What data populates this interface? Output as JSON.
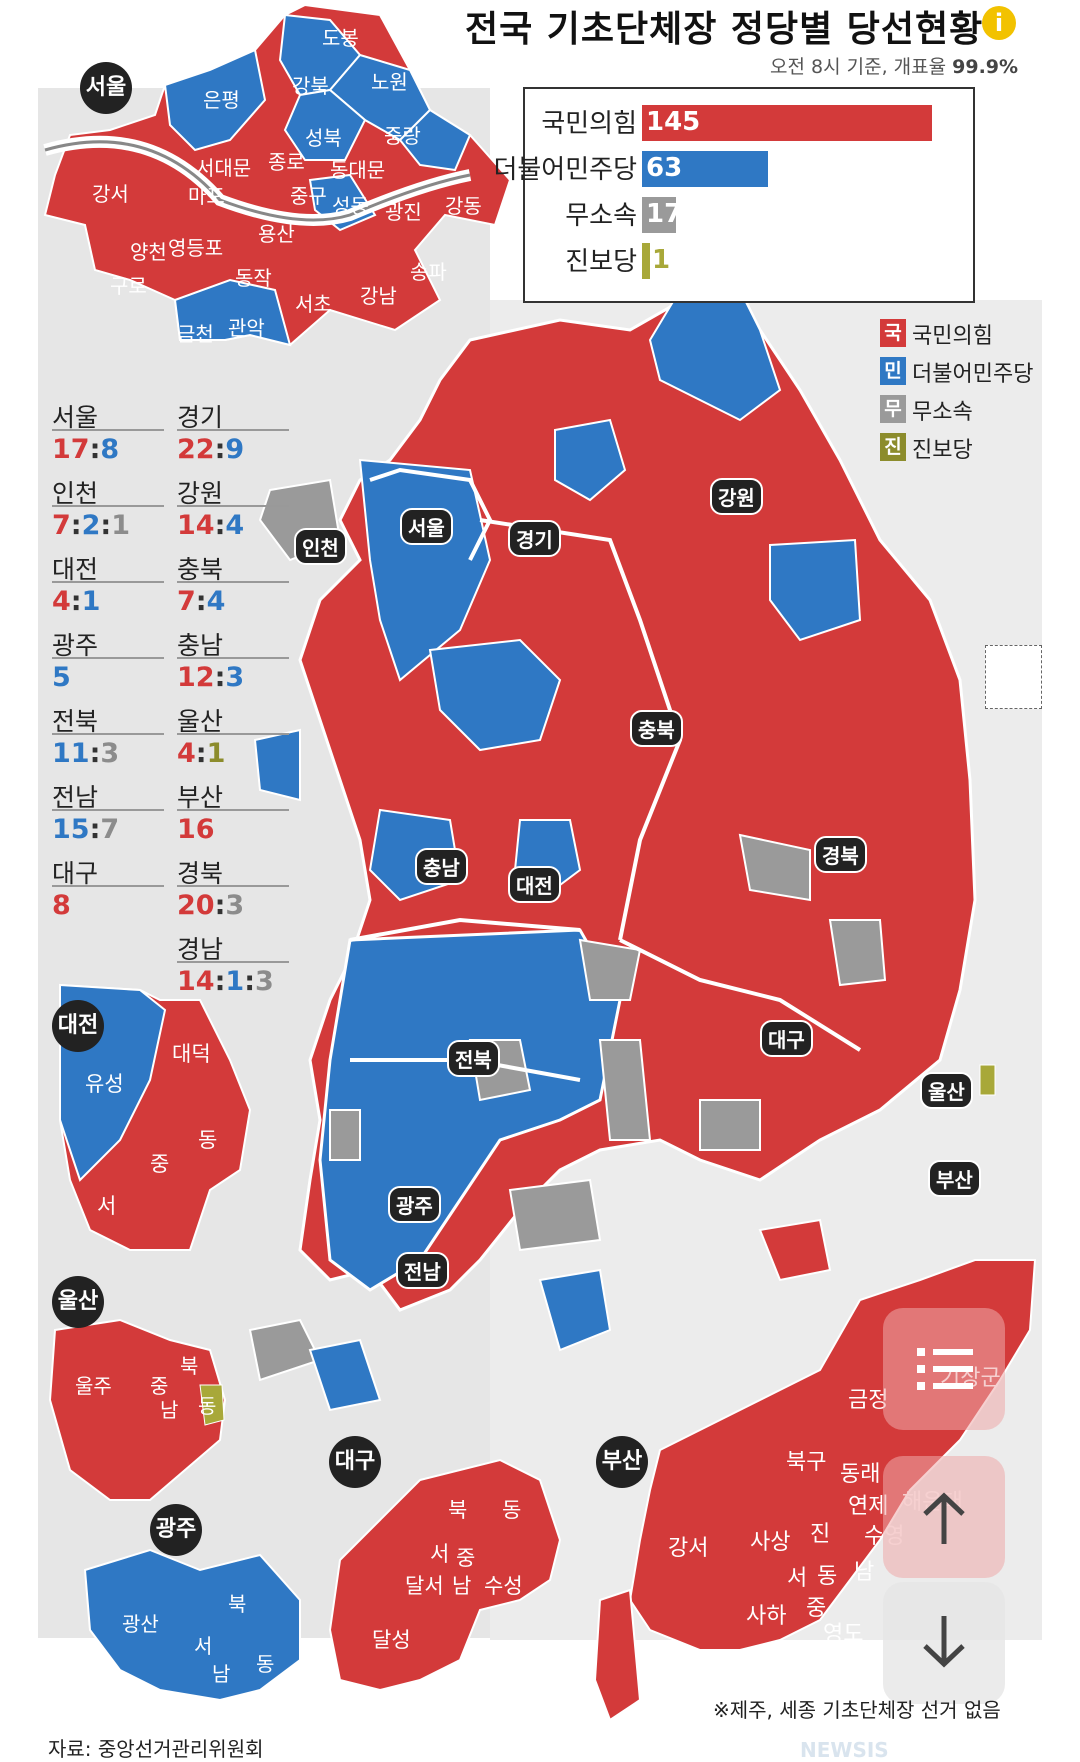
{
  "title": "전국 기초단체장 정당별 당선현황",
  "title_info_icon": "i",
  "subtitle": {
    "time": "오전 8시 기준, 개표율",
    "rate": "99.9%"
  },
  "chart_data": {
    "type": "bar",
    "categories": [
      "국민의힘",
      "더불어민주당",
      "무소속",
      "진보당"
    ],
    "values": [
      145,
      63,
      17,
      1
    ],
    "colors": [
      "#d33a3a",
      "#2f78c4",
      "#9a9a9a",
      "#a8a839"
    ]
  },
  "summary": [
    {
      "label": "국민의힘",
      "value": "145"
    },
    {
      "label": "더불어민주당",
      "value": "63"
    },
    {
      "label": "무소속",
      "value": "17"
    },
    {
      "label": "진보당",
      "value": "1"
    }
  ],
  "legend": [
    {
      "badge": "국",
      "label": "국민의힘",
      "color": "#d33a3a"
    },
    {
      "badge": "민",
      "label": "더불어민주당",
      "color": "#2f78c4"
    },
    {
      "badge": "무",
      "label": "무소속",
      "color": "#9a9a9a"
    },
    {
      "badge": "진",
      "label": "진보당",
      "color": "#8c8c2c"
    }
  ],
  "regional_stats": [
    {
      "region": "서울",
      "parts": [
        {
          "v": "17",
          "c": "r"
        },
        {
          "v": "8",
          "c": "b"
        }
      ]
    },
    {
      "region": "경기",
      "parts": [
        {
          "v": "22",
          "c": "r"
        },
        {
          "v": "9",
          "c": "b"
        }
      ]
    },
    {
      "region": "인천",
      "parts": [
        {
          "v": "7",
          "c": "r"
        },
        {
          "v": "2",
          "c": "b"
        },
        {
          "v": "1",
          "c": "g"
        }
      ]
    },
    {
      "region": "강원",
      "parts": [
        {
          "v": "14",
          "c": "r"
        },
        {
          "v": "4",
          "c": "b"
        }
      ]
    },
    {
      "region": "대전",
      "parts": [
        {
          "v": "4",
          "c": "r"
        },
        {
          "v": "1",
          "c": "b"
        }
      ]
    },
    {
      "region": "충북",
      "parts": [
        {
          "v": "7",
          "c": "r"
        },
        {
          "v": "4",
          "c": "b"
        }
      ]
    },
    {
      "region": "광주",
      "parts": [
        {
          "v": "5",
          "c": "b"
        }
      ]
    },
    {
      "region": "충남",
      "parts": [
        {
          "v": "12",
          "c": "r"
        },
        {
          "v": "3",
          "c": "b"
        }
      ]
    },
    {
      "region": "전북",
      "parts": [
        {
          "v": "11",
          "c": "b"
        },
        {
          "v": "3",
          "c": "g"
        }
      ]
    },
    {
      "region": "울산",
      "parts": [
        {
          "v": "4",
          "c": "r"
        },
        {
          "v": "1",
          "c": "o"
        }
      ]
    },
    {
      "region": "전남",
      "parts": [
        {
          "v": "15",
          "c": "b"
        },
        {
          "v": "7",
          "c": "g"
        }
      ]
    },
    {
      "region": "부산",
      "parts": [
        {
          "v": "16",
          "c": "r"
        }
      ]
    },
    {
      "region": "대구",
      "parts": [
        {
          "v": "8",
          "c": "r"
        }
      ]
    },
    {
      "region": "경북",
      "parts": [
        {
          "v": "20",
          "c": "r"
        },
        {
          "v": "3",
          "c": "g"
        }
      ]
    },
    {
      "region": "경남",
      "parts": [
        {
          "v": "14",
          "c": "r"
        },
        {
          "v": "1",
          "c": "b"
        },
        {
          "v": "3",
          "c": "g"
        }
      ]
    }
  ],
  "inset_labels": {
    "seoul": "서울",
    "daejeon": "대전",
    "ulsan": "울산",
    "gwangju": "광주",
    "daegu": "대구",
    "busan": "부산"
  },
  "map_labels": {
    "seoul": "서울",
    "incheon": "인천",
    "gyeonggi": "경기",
    "gangwon": "강원",
    "chungbuk": "충북",
    "chungnam": "충남",
    "daejeon": "대전",
    "gyeongbuk": "경북",
    "daegu": "대구",
    "ulsan": "울산",
    "jeonbuk": "전북",
    "gwangju": "광주",
    "jeonnam": "전남",
    "busan": "부산"
  },
  "seoul_districts": [
    "도봉",
    "노원",
    "은평",
    "강북",
    "성북",
    "중랑",
    "서대문",
    "종로",
    "동대문",
    "강서",
    "마포",
    "중구",
    "성동",
    "광진",
    "강동",
    "양천",
    "영등포",
    "용산",
    "구로",
    "동작",
    "서초",
    "강남",
    "송파",
    "금천",
    "관악"
  ],
  "daejeon_districts": [
    "유성",
    "대덕",
    "동",
    "중",
    "서"
  ],
  "ulsan_districts": [
    "울주",
    "북",
    "중",
    "남",
    "동"
  ],
  "gwangju_districts": [
    "광산",
    "북",
    "서",
    "남",
    "동"
  ],
  "daegu_districts": [
    "북",
    "동",
    "서",
    "중",
    "달서",
    "남",
    "수성",
    "달성"
  ],
  "busan_districts": [
    "기장군",
    "금정",
    "북구",
    "동래",
    "연제",
    "해운대",
    "강서",
    "사상",
    "진",
    "수영",
    "서",
    "동",
    "남",
    "사하",
    "중",
    "영도"
  ],
  "note": "※제주, 세종 기초단체장 선거 없음",
  "source": "자료: 중앙선거관리위원회",
  "watermark": "NEWSIS"
}
